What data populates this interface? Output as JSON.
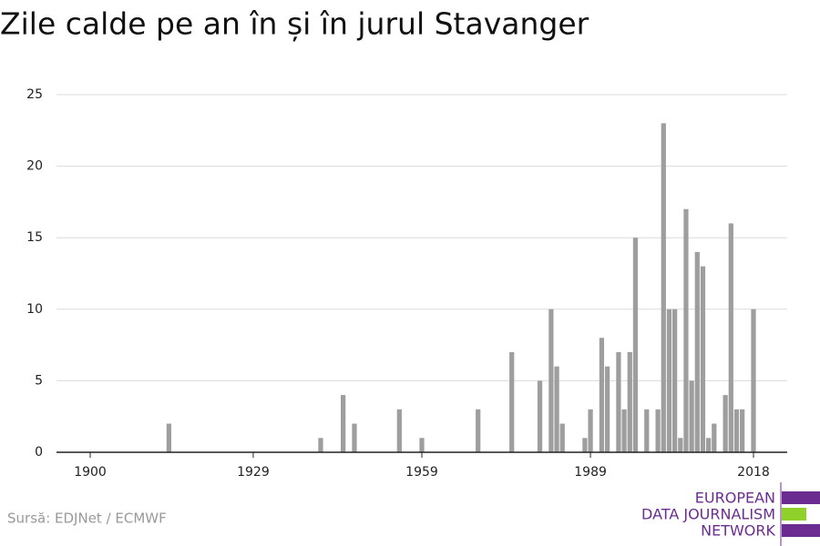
{
  "chart_data": {
    "type": "bar",
    "title": "Zile calde pe an în și în jurul Stavanger",
    "source": "Sursă: EDJNet / ECMWF",
    "logo": [
      "EUROPEAN",
      "DATA JOURNALISM",
      "NETWORK"
    ],
    "x": [
      1914,
      1941,
      1945,
      1947,
      1955,
      1959,
      1969,
      1975,
      1980,
      1982,
      1983,
      1984,
      1988,
      1989,
      1991,
      1992,
      1994,
      1995,
      1996,
      1997,
      1999,
      2001,
      2002,
      2003,
      2004,
      2005,
      2006,
      2007,
      2008,
      2009,
      2010,
      2011,
      2013,
      2014,
      2015,
      2016,
      2018
    ],
    "values": [
      2,
      1,
      4,
      2,
      3,
      1,
      3,
      7,
      5,
      10,
      6,
      2,
      1,
      3,
      8,
      6,
      7,
      3,
      7,
      15,
      3,
      3,
      23,
      10,
      10,
      1,
      17,
      5,
      14,
      13,
      1,
      2,
      4,
      16,
      3,
      3,
      10
    ],
    "color": "#9e9e9e",
    "xlim": [
      1894,
      2024
    ],
    "xticks": [
      1900,
      1929,
      1959,
      1989,
      2018
    ],
    "ylim": [
      0,
      25
    ],
    "yticks": [
      0,
      5,
      10,
      15,
      20,
      25
    ],
    "grid": true
  }
}
